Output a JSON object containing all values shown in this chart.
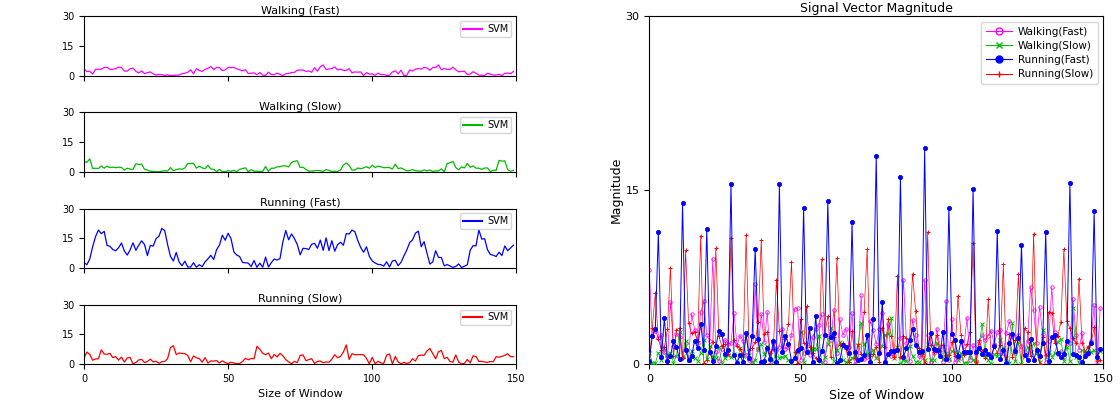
{
  "N": 150,
  "walking_fast_color": "#FF00FF",
  "walking_slow_color": "#00BB00",
  "running_fast_color": "#0000FF",
  "running_slow_color": "#FF0000",
  "subplot_titles": [
    "Walking (Fast)",
    "Walking (Slow)",
    "Running (Fast)",
    "Running (Slow)"
  ],
  "right_title": "Signal Vector Magnitude",
  "xlabel": "Size of Window",
  "ylabel": "Magnitude",
  "ylim_small": [
    0,
    30
  ],
  "ylim_right": [
    0,
    30
  ],
  "yticks_small": [
    0,
    15,
    30
  ],
  "yticks_right": [
    0,
    15,
    30
  ],
  "xlim": [
    0,
    150
  ],
  "xticks": [
    0,
    50,
    100,
    150
  ],
  "legend_label": "SVM",
  "right_legend": [
    "Walking(Fast)",
    "Walking(Slow)",
    "Running(Fast)",
    "Running(Slow)"
  ]
}
